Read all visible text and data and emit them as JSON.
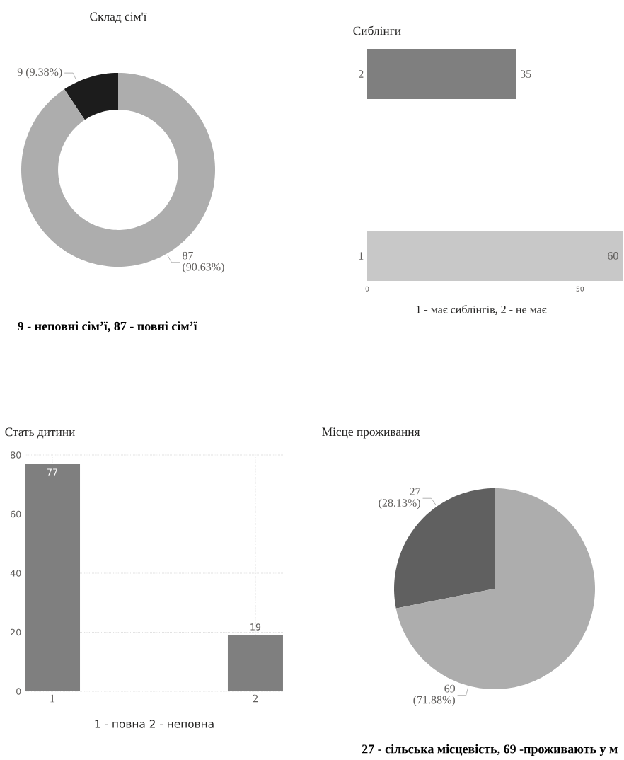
{
  "chart_data": [
    {
      "type": "donut",
      "title": "Склад сім'ї",
      "categories": [
        null,
        null
      ],
      "values": [
        9,
        87
      ],
      "colors": [
        "#1c1c1c",
        "#adadad"
      ],
      "value_labels": [
        "9 (9.38%)",
        "87 (90.63%)"
      ],
      "annotations": [
        "**9 - неповні сім’ї, 87 - повні сім’ї**"
      ]
    },
    {
      "type": "bar",
      "orientation": "horizontal",
      "title": "Сиблінги",
      "xlabel": "1 - має сиблінгів, 2 - не має",
      "categories": [
        "2",
        "1"
      ],
      "values": [
        35,
        60
      ],
      "colors": [
        "#7f7f7f",
        "#c8c8c8"
      ],
      "xlim": [
        0,
        60
      ],
      "xticks": [
        0,
        50
      ],
      "data_labels": true
    },
    {
      "type": "bar",
      "title": "Стать дитини",
      "xlabel": "1 - повна 2 - неповна",
      "categories": [
        "1",
        "2"
      ],
      "values": [
        77,
        19
      ],
      "color": "#7f7f7f",
      "ylim": [
        0,
        80
      ],
      "yticks": [
        0,
        20,
        40,
        60,
        80
      ],
      "grid": true,
      "data_labels": true
    },
    {
      "type": "pie",
      "title": "Місце проживання",
      "categories": [
        null,
        null
      ],
      "values": [
        27,
        69
      ],
      "colors": [
        "#606060",
        "#adadad"
      ],
      "value_labels": [
        "27 (28.13%)",
        "69 (71.88%)"
      ],
      "annotations": [
        "**27 - сільська місцевість, 69 -проживають у м**"
      ]
    }
  ]
}
